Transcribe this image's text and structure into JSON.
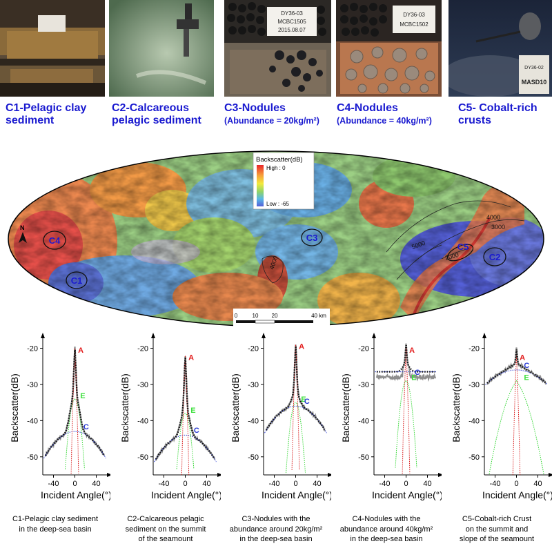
{
  "photos": [
    {
      "id": "C1",
      "line1": "C1-Pelagic clay",
      "line2": "sediment",
      "sub": ""
    },
    {
      "id": "C2",
      "line1": "C2-Calcareous",
      "line2": "pelagic  sediment",
      "sub": ""
    },
    {
      "id": "C3",
      "line1": "C3-Nodules",
      "line2": "",
      "sub": "(Abundance = 20kg/m²)",
      "label_text": [
        "DY36-03",
        "MCBC1505",
        "2015.08.07"
      ]
    },
    {
      "id": "C4",
      "line1": "C4-Nodules",
      "line2": "",
      "sub": "(Abundance = 40kg/m²)",
      "label_text": [
        "DY36-03",
        "MCBC1502"
      ]
    },
    {
      "id": "C5",
      "line1": "C5- Cobalt-rich",
      "line2": " crusts",
      "sub": "",
      "label_text": [
        "DY36-02",
        "MASD10"
      ]
    }
  ],
  "map": {
    "legend_title": "Backscatter(dB)",
    "legend_high": "High : 0",
    "legend_low": "Low : -65",
    "north": "N",
    "sites": [
      "C1",
      "C2",
      "C3",
      "C4",
      "C5"
    ],
    "contours": [
      "4000",
      "3000",
      "5000",
      "2000",
      "4000"
    ],
    "scale_ticks": [
      "0",
      "10",
      "20",
      "40 km"
    ]
  },
  "chart_data": [
    {
      "type": "line",
      "ylabel": "Backscatter(dB)",
      "xlabel": "Incident Angle(°)",
      "xlim": [
        -60,
        60
      ],
      "ylim": [
        -55,
        -18
      ],
      "xticks": [
        "-40",
        "0",
        "40"
      ],
      "yticks": [
        "-20",
        "-30",
        "-40",
        "-50"
      ],
      "components": [
        "A",
        "E",
        "C"
      ],
      "peak": {
        "A": -20,
        "E": -34,
        "C": -43
      },
      "caption": [
        "C1-Pelagic clay sediment",
        "in the deep-sea basin"
      ]
    },
    {
      "type": "line",
      "ylabel": "Backscatter(dB)",
      "xlabel": "Incident Angle(°)",
      "xlim": [
        -60,
        60
      ],
      "ylim": [
        -55,
        -18
      ],
      "xticks": [
        "-40",
        "0",
        "40"
      ],
      "yticks": [
        "-20",
        "-30",
        "-40",
        "-50"
      ],
      "components": [
        "A",
        "E",
        "C"
      ],
      "peak": {
        "A": -22,
        "E": -38,
        "C": -44
      },
      "caption": [
        "C2-Calcareous pelagic",
        "sediment on the summit",
        "of the seamount"
      ]
    },
    {
      "type": "line",
      "ylabel": "Backscatter(dB)",
      "xlabel": "Incident Angle(°)",
      "xlim": [
        -60,
        60
      ],
      "ylim": [
        -55,
        -18
      ],
      "xticks": [
        "-40",
        "0",
        "40"
      ],
      "yticks": [
        "-20",
        "-30",
        "-40",
        "-50"
      ],
      "components": [
        "A",
        "E",
        "C"
      ],
      "peak": {
        "A": -19,
        "E": -35,
        "C": -36
      },
      "caption": [
        "C3-Nodules with the",
        "abundance around 20kg/m²",
        "in the deep-sea basin"
      ]
    },
    {
      "type": "line",
      "ylabel": "Backscatter(dB)",
      "xlabel": "Incident Angle(°)",
      "xlim": [
        -60,
        60
      ],
      "ylim": [
        -55,
        -18
      ],
      "xticks": [
        "-40",
        "0",
        "40"
      ],
      "yticks": [
        "-20",
        "-30",
        "-40",
        "-50"
      ],
      "components": [
        "A",
        "C",
        "E"
      ],
      "peak": {
        "A": -20,
        "E": -29,
        "C": -26.5
      },
      "caption": [
        "C4-Nodules with the",
        "abundance around 40kg/m²",
        "in the deep-sea basin"
      ]
    },
    {
      "type": "line",
      "ylabel": "Backscatter(dB)",
      "xlabel": "Incident Angle(°)",
      "xlim": [
        -60,
        60
      ],
      "ylim": [
        -55,
        -18
      ],
      "xticks": [
        "-40",
        "0",
        "40"
      ],
      "yticks": [
        "-20",
        "-30",
        "-40",
        "-50"
      ],
      "components": [
        "A",
        "C",
        "E"
      ],
      "peak": {
        "A": -22,
        "E": -29,
        "C": -26
      },
      "caption": [
        "C5-Cobalt-rich Crust",
        "on the summit and",
        "slope of the seamount"
      ]
    }
  ]
}
